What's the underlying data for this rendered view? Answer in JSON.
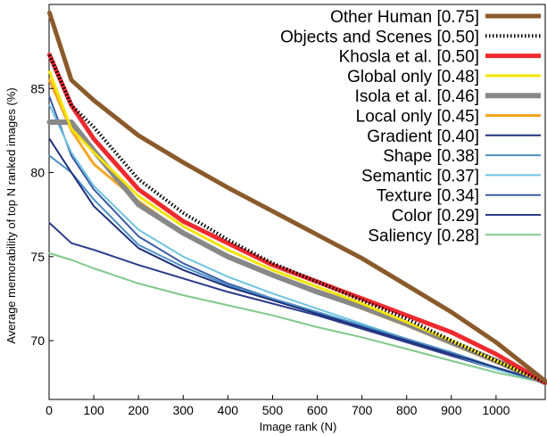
{
  "chart_data": {
    "type": "line",
    "title": "",
    "xlabel": "Image rank (N)",
    "ylabel": "Average memorability of top N ranked images (%)",
    "xlim": [
      0,
      1110
    ],
    "ylim": [
      66.5,
      90
    ],
    "xticks": [
      0,
      100,
      200,
      300,
      400,
      500,
      600,
      700,
      800,
      900,
      1000
    ],
    "yticks": [
      70,
      75,
      80,
      85
    ],
    "grid": false,
    "legend_position": "top-right",
    "x": [
      1,
      50,
      100,
      200,
      300,
      400,
      500,
      600,
      700,
      800,
      900,
      1000,
      1110
    ],
    "series": [
      {
        "name": "Other Human [0.75]",
        "color": "#8b5a2b",
        "style": "solid",
        "width": 5,
        "values": [
          89.5,
          85.5,
          84.3,
          82.2,
          80.6,
          79.1,
          77.7,
          76.3,
          74.9,
          73.3,
          71.7,
          69.9,
          67.6
        ]
      },
      {
        "name": "Objects and Scenes [0.50]",
        "color": "#000000",
        "style": "dotted",
        "width": 4,
        "values": [
          87.0,
          84.0,
          82.7,
          79.6,
          77.6,
          76.0,
          74.6,
          73.5,
          72.4,
          71.3,
          70.0,
          68.8,
          67.5
        ]
      },
      {
        "name": "Khosla et al. [0.50]",
        "color": "#ee2a2e",
        "style": "solid",
        "width": 5,
        "values": [
          87.0,
          84.0,
          82.0,
          79.0,
          77.1,
          75.8,
          74.5,
          73.5,
          72.5,
          71.5,
          70.5,
          69.2,
          67.5
        ]
      },
      {
        "name": "Global only [0.48]",
        "color": "#f5e400",
        "style": "solid",
        "width": 3,
        "values": [
          86.0,
          82.6,
          81.2,
          78.6,
          76.8,
          75.4,
          74.2,
          73.2,
          72.2,
          71.1,
          70.0,
          68.8,
          67.5
        ]
      },
      {
        "name": "Isola et al. [0.46]",
        "color": "#888888",
        "style": "solid",
        "width": 6,
        "values": [
          83.0,
          83.0,
          81.3,
          78.1,
          76.4,
          75.0,
          73.9,
          72.9,
          72.0,
          71.0,
          69.9,
          68.8,
          67.5
        ]
      },
      {
        "name": "Local only [0.45]",
        "color": "#f5a623",
        "style": "solid",
        "width": 3,
        "values": [
          85.5,
          82.5,
          80.5,
          78.3,
          76.4,
          75.0,
          73.9,
          72.9,
          71.9,
          70.9,
          69.8,
          68.7,
          67.5
        ]
      },
      {
        "name": "Gradient [0.40]",
        "color": "#1f2f7a",
        "style": "solid",
        "width": 2,
        "values": [
          82.0,
          80.0,
          78.0,
          75.5,
          74.2,
          73.2,
          72.4,
          71.6,
          70.8,
          70.0,
          69.2,
          68.4,
          67.5
        ]
      },
      {
        "name": "Shape [0.38]",
        "color": "#4a90c8",
        "style": "solid",
        "width": 2,
        "values": [
          81.0,
          80.0,
          78.4,
          75.7,
          74.4,
          73.3,
          72.5,
          71.7,
          70.9,
          70.1,
          69.3,
          68.4,
          67.5
        ]
      },
      {
        "name": "Semantic [0.37]",
        "color": "#6ec3e0",
        "style": "solid",
        "width": 2,
        "values": [
          84.0,
          81.2,
          79.2,
          76.6,
          75.0,
          73.8,
          72.8,
          71.9,
          71.0,
          70.1,
          69.2,
          68.3,
          67.5
        ]
      },
      {
        "name": "Texture [0.34]",
        "color": "#3b5ba5",
        "style": "solid",
        "width": 2,
        "values": [
          84.5,
          81.0,
          79.0,
          76.2,
          74.6,
          73.4,
          72.5,
          71.7,
          70.9,
          70.1,
          69.3,
          68.4,
          67.5
        ]
      },
      {
        "name": "Color [0.29]",
        "color": "#2b3a8a",
        "style": "solid",
        "width": 2,
        "values": [
          77.0,
          75.8,
          75.4,
          74.5,
          73.7,
          72.9,
          72.2,
          71.5,
          70.7,
          69.9,
          69.1,
          68.3,
          67.5
        ]
      },
      {
        "name": "Saliency [0.28]",
        "color": "#7fc98a",
        "style": "solid",
        "width": 2,
        "values": [
          75.2,
          74.8,
          74.3,
          73.4,
          72.7,
          72.1,
          71.5,
          70.8,
          70.2,
          69.5,
          68.8,
          68.1,
          67.5
        ]
      }
    ]
  }
}
